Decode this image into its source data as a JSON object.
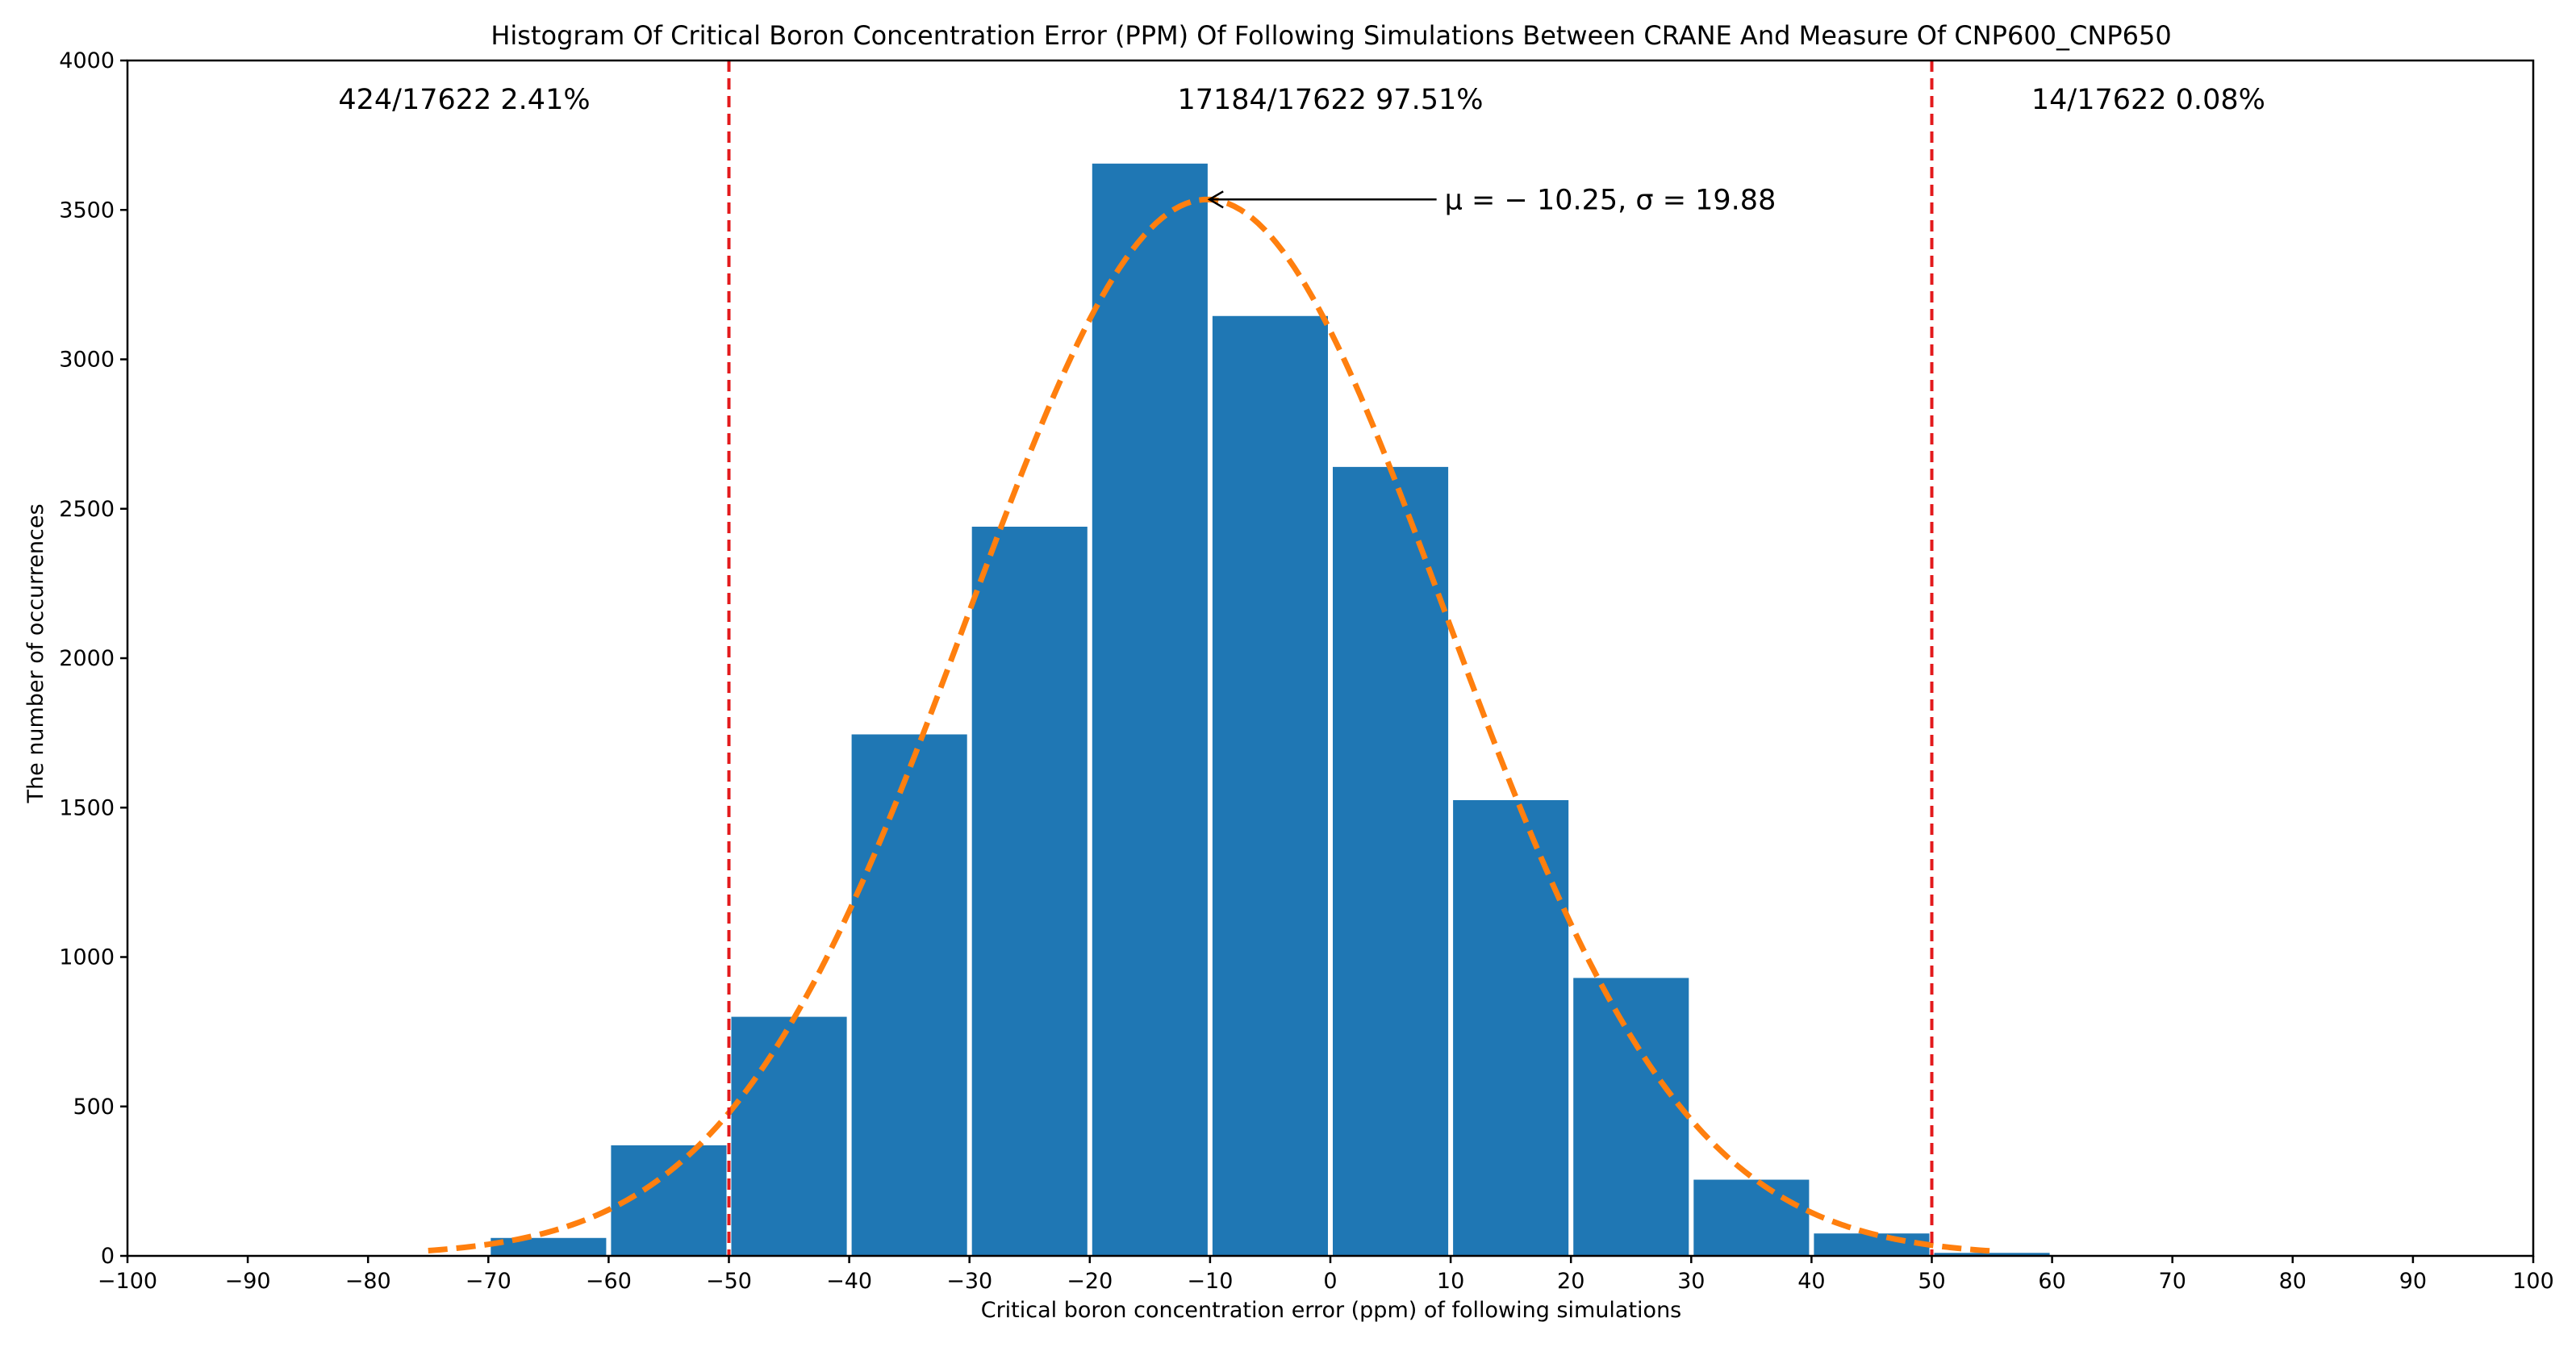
{
  "chart_data": {
    "type": "bar",
    "title": "Histogram Of Critical Boron Concentration Error (PPM) Of Following Simulations Between CRANE And Measure Of CNP600_CNP650",
    "xlabel": "Critical boron concentration error (ppm) of following simulations",
    "ylabel": "The number of occurrences",
    "xlim": [
      -100,
      100
    ],
    "ylim": [
      0,
      4000
    ],
    "xticks": [
      -100,
      -90,
      -80,
      -70,
      -60,
      -50,
      -40,
      -30,
      -20,
      -10,
      0,
      10,
      20,
      30,
      40,
      50,
      60,
      70,
      80,
      90,
      100
    ],
    "yticks": [
      0,
      500,
      1000,
      1500,
      2000,
      2500,
      3000,
      3500,
      4000
    ],
    "xtick_labels": [
      "−100",
      "−90",
      "−80",
      "−70",
      "−60",
      "−50",
      "−40",
      "−30",
      "−20",
      "−10",
      "0",
      "10",
      "20",
      "30",
      "40",
      "50",
      "60",
      "70",
      "80",
      "90",
      "100"
    ],
    "ytick_labels": [
      "0",
      "500",
      "1000",
      "1500",
      "2000",
      "2500",
      "3000",
      "3500",
      "4000"
    ],
    "bin_width": 10,
    "bins": [
      {
        "start": -70,
        "value": 60
      },
      {
        "start": -60,
        "value": 370
      },
      {
        "start": -50,
        "value": 800
      },
      {
        "start": -40,
        "value": 1745
      },
      {
        "start": -30,
        "value": 2440
      },
      {
        "start": -20,
        "value": 3655
      },
      {
        "start": -10,
        "value": 3145
      },
      {
        "start": 0,
        "value": 2640
      },
      {
        "start": 10,
        "value": 1525
      },
      {
        "start": 20,
        "value": 930
      },
      {
        "start": 30,
        "value": 255
      },
      {
        "start": 40,
        "value": 75
      },
      {
        "start": 50,
        "value": 10
      }
    ],
    "bar_color": "#1f77b4",
    "fit_curve": {
      "mu": -10.25,
      "sigma": 19.88,
      "peak": 3535,
      "x_range": [
        -75,
        55
      ],
      "color": "#ff7f0e"
    },
    "vlines": [
      {
        "x": -50,
        "color": "#e31a1c"
      },
      {
        "x": 50,
        "color": "#e31a1c"
      }
    ],
    "region_annotations": [
      {
        "x": -72,
        "y": 3870,
        "text": "424/17622    2.41%"
      },
      {
        "x": 0,
        "y": 3870,
        "text": "17184/17622    97.51%"
      },
      {
        "x": 68,
        "y": 3870,
        "text": "14/17622    0.08%"
      }
    ],
    "arrow_annotation": {
      "text": "μ = − 10.25, σ = 19.88",
      "text_x": 9.5,
      "text_y": 3535,
      "target_x": -10.25,
      "target_y": 3535
    }
  }
}
